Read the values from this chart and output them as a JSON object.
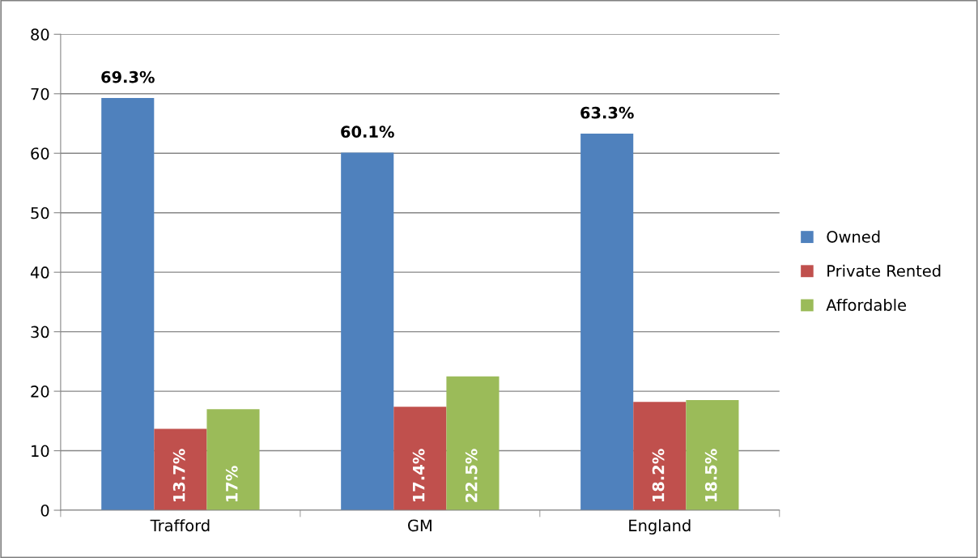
{
  "chart_data": {
    "type": "bar",
    "categories": [
      "Trafford",
      "GM",
      "England"
    ],
    "series": [
      {
        "name": "Owned",
        "color": "#4f81bd",
        "values": [
          69.3,
          60.1,
          63.3
        ],
        "value_labels": [
          "69.3%",
          "60.1%",
          "63.3%"
        ]
      },
      {
        "name": "Private Rented",
        "color": "#c0504d",
        "values": [
          13.7,
          17.4,
          18.2
        ],
        "value_labels": [
          "13.7%",
          "17.4%",
          "18.2%"
        ]
      },
      {
        "name": "Affordable",
        "color": "#9bbb59",
        "values": [
          17,
          22.5,
          18.5
        ],
        "value_labels": [
          "17%",
          "22.5%",
          "18.5%"
        ]
      }
    ],
    "ylim": [
      0,
      80
    ],
    "yticks": [
      0,
      10,
      20,
      30,
      40,
      50,
      60,
      70,
      80
    ],
    "grid": "y",
    "legend": "right"
  }
}
